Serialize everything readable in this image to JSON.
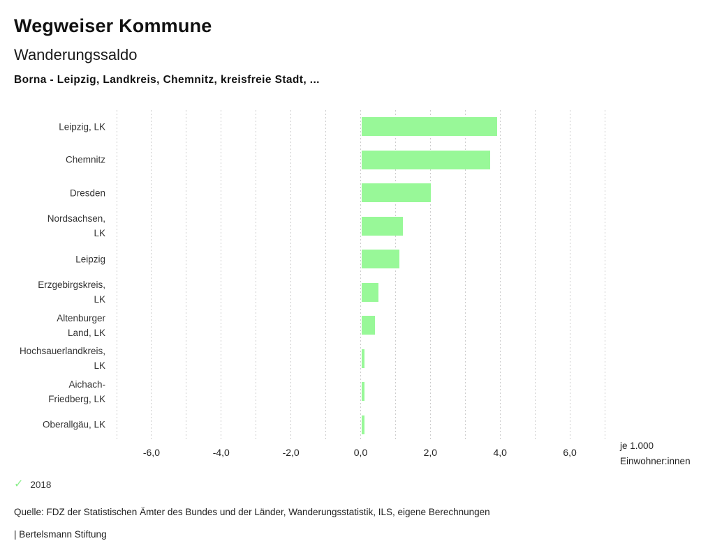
{
  "header": {
    "title": "Wegweiser Kommune",
    "subtitle": "Wanderungssaldo",
    "selection": "Borna - Leipzig, Landkreis, Chemnitz, kreisfreie Stadt, ..."
  },
  "chart_data": {
    "type": "bar",
    "orientation": "horizontal",
    "title": "Wanderungssaldo",
    "categories": [
      "Leipzig, LK",
      "Chemnitz",
      "Dresden",
      "Nordsachsen, LK",
      "Leipzig",
      "Erzgebirgskreis, LK",
      "Altenburger Land, LK",
      "Hochsauerlandkreis, LK",
      "Aichach-Friedberg, LK",
      "Oberallgäu, LK"
    ],
    "label_lines": [
      [
        "Leipzig, LK"
      ],
      [
        "Chemnitz"
      ],
      [
        "Dresden"
      ],
      [
        "Nordsachsen,",
        "LK"
      ],
      [
        "Leipzig"
      ],
      [
        "Erzgebirgskreis,",
        "LK"
      ],
      [
        "Altenburger",
        "Land, LK"
      ],
      [
        "Hochsauerlandkreis,",
        "LK"
      ],
      [
        "Aichach-",
        "Friedberg, LK"
      ],
      [
        "Oberallgäu, LK"
      ]
    ],
    "series": [
      {
        "name": "2018",
        "values": [
          3.9,
          3.7,
          2.0,
          1.2,
          1.1,
          0.5,
          0.4,
          0.1,
          0.1,
          0.1
        ]
      }
    ],
    "xlim": [
      -7,
      7
    ],
    "grid_step": 1,
    "grid": true,
    "xticks": [
      {
        "value": -6,
        "label": "-6,0"
      },
      {
        "value": -4,
        "label": "-4,0"
      },
      {
        "value": -2,
        "label": "-2,0"
      },
      {
        "value": 0,
        "label": "0,0"
      },
      {
        "value": 2,
        "label": "2,0"
      },
      {
        "value": 4,
        "label": "4,0"
      },
      {
        "value": 6,
        "label": "6,0"
      }
    ],
    "unit_label": [
      "je 1.000",
      "Einwohner:innen"
    ],
    "bar_color": "#98F898",
    "gridline_color": "#cccccc",
    "legend_position": "bottom-left"
  },
  "legend": {
    "year": "2018",
    "check_icon": "✓",
    "check_color": "#8BEF8B"
  },
  "footer": {
    "source": "Quelle: FDZ der Statistischen Ämter des Bundes und der Länder, Wanderungsstatistik, ILS, eigene Berechnungen",
    "brand": "| Bertelsmann Stiftung"
  }
}
